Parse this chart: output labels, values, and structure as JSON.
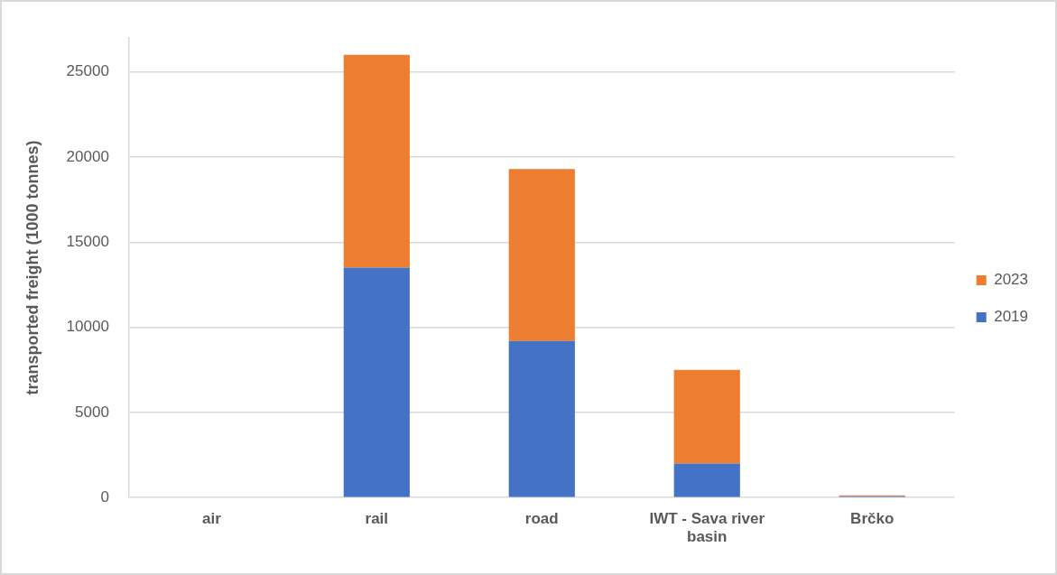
{
  "chart_data": {
    "type": "bar",
    "stacked": true,
    "ylabel": "transported freight (1000 tonnes)",
    "categories": [
      "air",
      "rail",
      "road",
      "IWT - Sava river basin",
      "Brčko"
    ],
    "series": [
      {
        "name": "2019",
        "color": "#4472c4",
        "values": [
          0,
          13500,
          9200,
          2000,
          80
        ]
      },
      {
        "name": "2023",
        "color": "#ed7d31",
        "values": [
          0,
          12500,
          10100,
          5500,
          50
        ]
      }
    ],
    "ylim": [
      0,
      27000
    ],
    "yticks": [
      0,
      5000,
      10000,
      15000,
      20000,
      25000
    ],
    "grid": "y",
    "legend": "right"
  }
}
